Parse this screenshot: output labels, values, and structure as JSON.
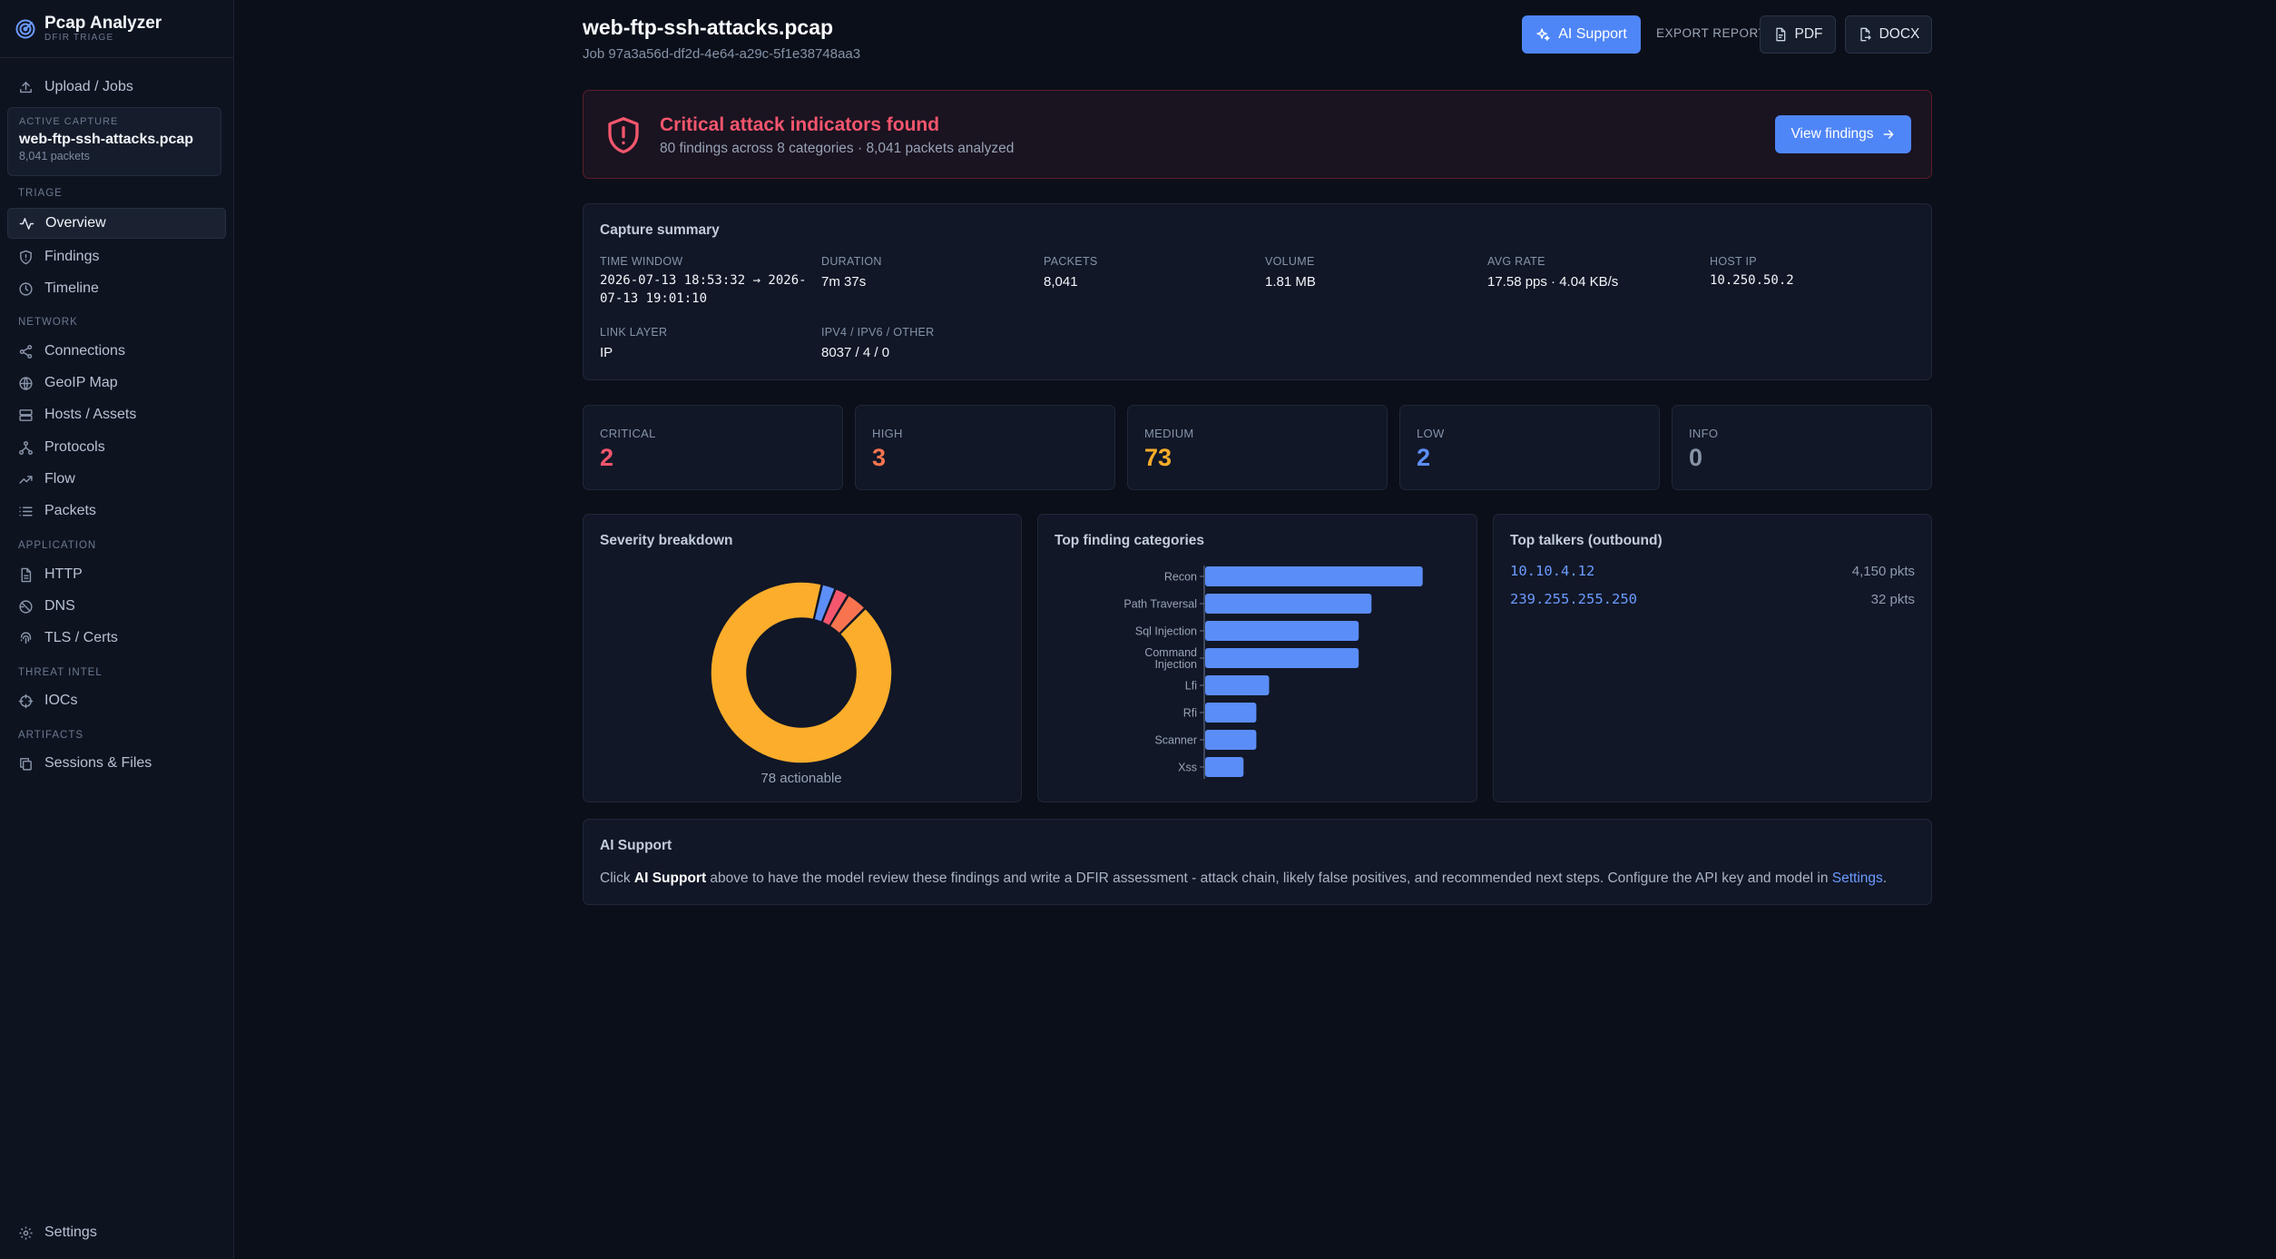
{
  "app": {
    "title": "Pcap Analyzer",
    "subtitle": "DFIR TRIAGE"
  },
  "sidebar": {
    "upload": "Upload / Jobs",
    "active_capture": {
      "label": "ACTIVE CAPTURE",
      "file": "web-ftp-ssh-attacks.pcap",
      "packets": "8,041 packets"
    },
    "sections": {
      "triage": "TRIAGE",
      "network": "NETWORK",
      "application": "APPLICATION",
      "threat_intel": "THREAT INTEL",
      "artifacts": "ARTIFACTS"
    },
    "items": {
      "overview": "Overview",
      "findings": "Findings",
      "timeline": "Timeline",
      "connections": "Connections",
      "geoip": "GeoIP Map",
      "hosts": "Hosts / Assets",
      "protocols": "Protocols",
      "flow": "Flow",
      "packets": "Packets",
      "http": "HTTP",
      "dns": "DNS",
      "tls": "TLS / Certs",
      "iocs": "IOCs",
      "sessions": "Sessions & Files"
    },
    "settings": "Settings"
  },
  "header": {
    "file": "web-ftp-ssh-attacks.pcap",
    "job": "Job 97a3a56d-df2d-4e64-a29c-5f1e38748aa3",
    "ai_button": "AI Support",
    "export_label": "EXPORT REPORT",
    "pdf": "PDF",
    "docx": "DOCX"
  },
  "alert": {
    "title": "Critical attack indicators found",
    "subtitle": "80 findings across 8 categories · 8,041 packets analyzed",
    "button": "View findings"
  },
  "summary": {
    "title": "Capture summary",
    "time_window": {
      "label": "TIME WINDOW",
      "line1": "2026-07-13 18:53:32 → 2026-",
      "line2": "07-13 19:01:10"
    },
    "duration": {
      "label": "DURATION",
      "value": "7m 37s"
    },
    "packets": {
      "label": "PACKETS",
      "value": "8,041"
    },
    "volume": {
      "label": "VOLUME",
      "value": "1.81 MB"
    },
    "avg_rate": {
      "label": "AVG RATE",
      "value": "17.58 pps · 4.04 KB/s"
    },
    "host_ip": {
      "label": "HOST IP",
      "value": "10.250.50.2"
    },
    "link_layer": {
      "label": "LINK LAYER",
      "value": "IP"
    },
    "ip_versions": {
      "label": "IPV4 / IPV6 / OTHER",
      "value": "8037 / 4 / 0"
    }
  },
  "severity": {
    "critical": {
      "label": "CRITICAL",
      "count": "2",
      "color": "#f4566d"
    },
    "high": {
      "label": "HIGH",
      "count": "3",
      "color": "#f7744f"
    },
    "medium": {
      "label": "MEDIUM",
      "count": "73",
      "color": "#fbad2b"
    },
    "low": {
      "label": "LOW",
      "count": "2",
      "color": "#5d8ff9"
    },
    "info": {
      "label": "INFO",
      "count": "0",
      "color": "#8793a6"
    }
  },
  "breakdown": {
    "title": "Severity breakdown",
    "caption": "78 actionable"
  },
  "categories": {
    "title": "Top finding categories"
  },
  "talkers": {
    "title": "Top talkers (outbound)",
    "rows": [
      {
        "ip": "10.10.4.12",
        "pkts": "4,150 pkts"
      },
      {
        "ip": "239.255.255.250",
        "pkts": "32 pkts"
      }
    ]
  },
  "ai": {
    "title": "AI Support",
    "pre": "Click ",
    "bold": "AI Support",
    "mid": " above to have the model review these findings and write a DFIR assessment - attack chain, likely false positives, and recommended next steps. Configure the API key and model in ",
    "link": "Settings",
    "post": "."
  },
  "chart_data": [
    {
      "type": "pie",
      "title": "Severity breakdown",
      "labels": [
        "Medium",
        "High",
        "Critical",
        "Low"
      ],
      "values": [
        73,
        3,
        2,
        2
      ],
      "colors": [
        "#fbad2b",
        "#f7744f",
        "#f4566d",
        "#5d8ff9"
      ],
      "annotation": "78 actionable"
    },
    {
      "type": "bar",
      "orientation": "horizontal",
      "title": "Top finding categories",
      "categories": [
        "Recon",
        "Path Traversal",
        "Sql Injection",
        "Command Injection",
        "Lfi",
        "Rfi",
        "Scanner",
        "Xss"
      ],
      "category_lines": [
        [
          "Recon"
        ],
        [
          "Path Traversal"
        ],
        [
          "Sql Injection"
        ],
        [
          "Command",
          "Injection"
        ],
        [
          "Lfi"
        ],
        [
          "Rfi"
        ],
        [
          "Scanner"
        ],
        [
          "Xss"
        ]
      ],
      "values": [
        17,
        13,
        12,
        12,
        5,
        4,
        4,
        3
      ],
      "color": "#5b8df8"
    }
  ]
}
